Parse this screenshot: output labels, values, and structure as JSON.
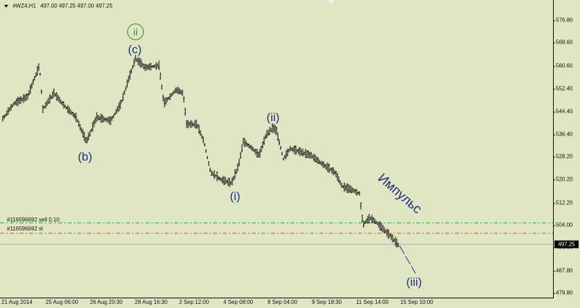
{
  "header": {
    "symbol_label": "#WZ4,H1",
    "ohlc": "497.00 497.25 497.00 497.25"
  },
  "price_axis": {
    "ticks": [
      "576.80",
      "568.60",
      "560.60",
      "552.40",
      "544.40",
      "536.40",
      "528.20",
      "520.20",
      "512.20",
      "504.00",
      "496.00",
      "487.80",
      "479.80"
    ],
    "current_price": "497.25"
  },
  "time_axis": {
    "labels": [
      "21 Aug 2014",
      "25 Aug 06:00",
      "26 Aug 20:30",
      "28 Aug 16:30",
      "2 Sep 12:00",
      "4 Sep 08:00",
      "8 Sep 04:00",
      "9 Sep 18:30",
      "11 Sep 14:00",
      "15 Sep 10:00"
    ]
  },
  "levels": [
    {
      "label": "#116596692 sell 0.10",
      "color": "#2e9d2e"
    },
    {
      "label": "#116596692 sl",
      "color": "#e04a1a"
    }
  ],
  "waves": {
    "ii_circle": "ii",
    "c": "(c)",
    "b": "(b)",
    "i": "(i)",
    "ii": "(ii)",
    "iii": "(iii)",
    "impulse": "Импульс"
  },
  "colors": {
    "background": "#e0e6c4",
    "bars": "#000000",
    "wave_text": "#1f2f7a",
    "circle": "#2d8b2d",
    "bid_line": "#a0a0a0"
  }
}
